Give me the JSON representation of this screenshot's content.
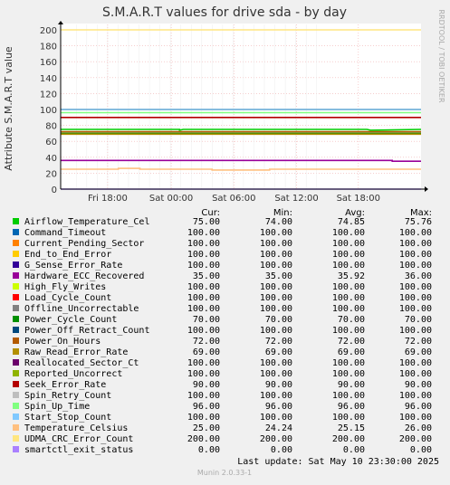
{
  "chart_data": {
    "type": "line",
    "title": "S.M.A.R.T values for drive sda - by day",
    "ylabel": "Attribute S.M.A.R.T value",
    "side_label": "RRDTOOL / TOBI OETIKER",
    "ylim": [
      0,
      200
    ],
    "yticks": [
      0,
      20,
      40,
      60,
      80,
      100,
      120,
      140,
      160,
      180,
      200
    ],
    "xlim": [
      0,
      1
    ],
    "xticks": [
      {
        "label": "Fri 18:00",
        "x": 0.1304
      },
      {
        "label": "Sat 00:00",
        "x": 0.3068
      },
      {
        "label": "Sat 06:00",
        "x": 0.4806
      },
      {
        "label": "Sat 12:00",
        "x": 0.6546
      },
      {
        "label": "Sat 18:00",
        "x": 0.8261
      }
    ],
    "grid": true,
    "columns": [
      "Cur:",
      "Min:",
      "Avg:",
      "Max:"
    ],
    "series": [
      {
        "name": "Airflow_Temperature_Cel",
        "color": "#00cc00",
        "cur": "75.00",
        "min": "74.00",
        "avg": "74.85",
        "max": "75.76",
        "points": [
          [
            0,
            75
          ],
          [
            0.33,
            75
          ],
          [
            0.33,
            74
          ],
          [
            0.34,
            75
          ],
          [
            0.62,
            75
          ],
          [
            0.85,
            75
          ],
          [
            0.86,
            74
          ],
          [
            1,
            75
          ]
        ]
      },
      {
        "name": "Command_Timeout",
        "color": "#0066b3",
        "cur": "100.00",
        "min": "100.00",
        "avg": "100.00",
        "max": "100.00",
        "points": [
          [
            0,
            100
          ],
          [
            1,
            100
          ]
        ]
      },
      {
        "name": "Current_Pending_Sector",
        "color": "#ff8000",
        "cur": "100.00",
        "min": "100.00",
        "avg": "100.00",
        "max": "100.00",
        "points": [
          [
            0,
            100
          ],
          [
            1,
            100
          ]
        ]
      },
      {
        "name": "End_to_End_Error",
        "color": "#ffcc00",
        "cur": "100.00",
        "min": "100.00",
        "avg": "100.00",
        "max": "100.00",
        "points": [
          [
            0,
            100
          ],
          [
            1,
            100
          ]
        ]
      },
      {
        "name": "G_Sense_Error_Rate",
        "color": "#330099",
        "cur": "100.00",
        "min": "100.00",
        "avg": "100.00",
        "max": "100.00",
        "points": [
          [
            0,
            100
          ],
          [
            1,
            100
          ]
        ]
      },
      {
        "name": "Hardware_ECC_Recovered",
        "color": "#990099",
        "cur": "35.00",
        "min": "35.00",
        "avg": "35.92",
        "max": "36.00",
        "points": [
          [
            0,
            36
          ],
          [
            0.92,
            36
          ],
          [
            0.92,
            35
          ],
          [
            1,
            35
          ]
        ]
      },
      {
        "name": "High_Fly_Writes",
        "color": "#ccff00",
        "cur": "100.00",
        "min": "100.00",
        "avg": "100.00",
        "max": "100.00",
        "points": [
          [
            0,
            100
          ],
          [
            1,
            100
          ]
        ]
      },
      {
        "name": "Load_Cycle_Count",
        "color": "#ff0000",
        "cur": "100.00",
        "min": "100.00",
        "avg": "100.00",
        "max": "100.00",
        "points": [
          [
            0,
            100
          ],
          [
            1,
            100
          ]
        ]
      },
      {
        "name": "Offline_Uncorrectable",
        "color": "#808080",
        "cur": "100.00",
        "min": "100.00",
        "avg": "100.00",
        "max": "100.00",
        "points": [
          [
            0,
            100
          ],
          [
            1,
            100
          ]
        ]
      },
      {
        "name": "Power_Cycle_Count",
        "color": "#008f00",
        "cur": "70.00",
        "min": "70.00",
        "avg": "70.00",
        "max": "70.00",
        "points": [
          [
            0,
            70
          ],
          [
            1,
            70
          ]
        ]
      },
      {
        "name": "Power_Off_Retract_Count",
        "color": "#00487d",
        "cur": "100.00",
        "min": "100.00",
        "avg": "100.00",
        "max": "100.00",
        "points": [
          [
            0,
            100
          ],
          [
            1,
            100
          ]
        ]
      },
      {
        "name": "Power_On_Hours",
        "color": "#b35a00",
        "cur": "72.00",
        "min": "72.00",
        "avg": "72.00",
        "max": "72.00",
        "points": [
          [
            0,
            72
          ],
          [
            1,
            72
          ]
        ]
      },
      {
        "name": "Raw_Read_Error_Rate",
        "color": "#b38f00",
        "cur": "69.00",
        "min": "69.00",
        "avg": "69.00",
        "max": "69.00",
        "points": [
          [
            0,
            69
          ],
          [
            1,
            69
          ]
        ]
      },
      {
        "name": "Reallocated_Sector_Ct",
        "color": "#6b006b",
        "cur": "100.00",
        "min": "100.00",
        "avg": "100.00",
        "max": "100.00",
        "points": [
          [
            0,
            100
          ],
          [
            1,
            100
          ]
        ]
      },
      {
        "name": "Reported_Uncorrect",
        "color": "#8fb300",
        "cur": "100.00",
        "min": "100.00",
        "avg": "100.00",
        "max": "100.00",
        "points": [
          [
            0,
            100
          ],
          [
            1,
            100
          ]
        ]
      },
      {
        "name": "Seek_Error_Rate",
        "color": "#b30000",
        "cur": "90.00",
        "min": "90.00",
        "avg": "90.00",
        "max": "90.00",
        "points": [
          [
            0,
            90
          ],
          [
            1,
            90
          ]
        ]
      },
      {
        "name": "Spin_Retry_Count",
        "color": "#bebebe",
        "cur": "100.00",
        "min": "100.00",
        "avg": "100.00",
        "max": "100.00",
        "points": [
          [
            0,
            100
          ],
          [
            1,
            100
          ]
        ]
      },
      {
        "name": "Spin_Up_Time",
        "color": "#80ff80",
        "cur": "96.00",
        "min": "96.00",
        "avg": "96.00",
        "max": "96.00",
        "points": [
          [
            0,
            96
          ],
          [
            1,
            96
          ]
        ]
      },
      {
        "name": "Start_Stop_Count",
        "color": "#80c9ff",
        "cur": "100.00",
        "min": "100.00",
        "avg": "100.00",
        "max": "100.00",
        "points": [
          [
            0,
            100
          ],
          [
            1,
            100
          ]
        ]
      },
      {
        "name": "Temperature_Celsius",
        "color": "#ffc080",
        "cur": "25.00",
        "min": "24.24",
        "avg": "25.15",
        "max": "26.00",
        "points": [
          [
            0,
            25
          ],
          [
            0.16,
            25
          ],
          [
            0.16,
            26
          ],
          [
            0.22,
            26
          ],
          [
            0.22,
            25
          ],
          [
            0.42,
            25
          ],
          [
            0.42,
            24
          ],
          [
            0.58,
            24
          ],
          [
            0.58,
            25
          ],
          [
            1,
            25
          ]
        ]
      },
      {
        "name": "UDMA_CRC_Error_Count",
        "color": "#ffe680",
        "cur": "200.00",
        "min": "200.00",
        "avg": "200.00",
        "max": "200.00",
        "points": [
          [
            0,
            200
          ],
          [
            1,
            200
          ]
        ]
      },
      {
        "name": "smartctl_exit_status",
        "color": "#aa80ff",
        "cur": "0.00",
        "min": "0.00",
        "avg": "0.00",
        "max": "0.00",
        "points": [
          [
            0,
            0
          ],
          [
            1,
            0
          ]
        ]
      }
    ]
  },
  "footer": {
    "last_update": "Last update:  Sat May 10 23:30:00 2025",
    "version": "Munin 2.0.33-1"
  }
}
